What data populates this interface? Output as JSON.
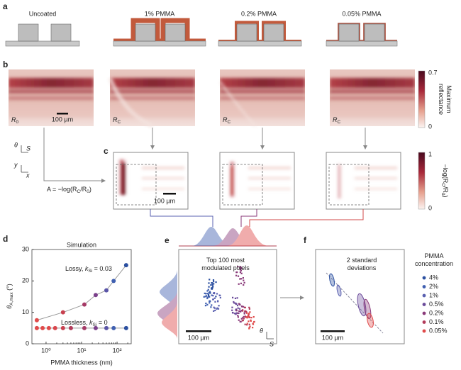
{
  "panel_labels": [
    "a",
    "b",
    "c",
    "d",
    "e",
    "f"
  ],
  "a": {
    "labels": [
      "Uncoated",
      "1% PMMA",
      "0.2% PMMA",
      "0.05% PMMA"
    ]
  },
  "b": {
    "image_labels": [
      [
        "R",
        "0"
      ],
      [
        "R",
        "C"
      ],
      [
        "R",
        "C"
      ],
      [
        "R",
        "C"
      ]
    ],
    "scale_bar": "100 µm",
    "colorbar": {
      "ticks": [
        0.7,
        0
      ],
      "label_lines": [
        "Maximum",
        "reflectance"
      ]
    },
    "axes": {
      "theta": "θ",
      "s": "S",
      "y": "y",
      "x": "x"
    },
    "formula": [
      "A = −log(R",
      "C",
      "/R",
      "0",
      ")"
    ]
  },
  "c": {
    "scale_bar": "100 µm",
    "colorbar": {
      "ticks": [
        1,
        0
      ],
      "label": [
        "−log(R",
        "C",
        "/R",
        "0",
        ")"
      ]
    }
  },
  "chart_data": {
    "type": "scatter",
    "title": "Simulation",
    "xlabel": "PMMA thickness (nm)",
    "ylabel": [
      "θ",
      "A,max",
      " (°)"
    ],
    "xlog": true,
    "xlim": [
      0.4,
      250
    ],
    "ylim": [
      0,
      30
    ],
    "xticks": [
      {
        "value": 1,
        "label": "10⁰"
      },
      {
        "value": 10,
        "label": "10¹"
      },
      {
        "value": 100,
        "label": "10²"
      }
    ],
    "yticks": [
      0,
      10,
      20,
      30
    ],
    "line_color": "#9a9a9a",
    "series": [
      {
        "name": [
          "Lossy, ",
          "k",
          "Si",
          " = 0.03"
        ],
        "x": [
          0.55,
          3,
          12,
          25,
          50,
          80,
          180
        ],
        "values": [
          7.5,
          10,
          12.5,
          15.5,
          17,
          20,
          25
        ],
        "colors": [
          "#e04a4a",
          "#c8404f",
          "#a53a66",
          "#7a3f8a",
          "#5a55a8",
          "#3f5fb0",
          "#2b4fa0"
        ]
      },
      {
        "name": [
          "Lossless, ",
          "k",
          "Si",
          " = 0"
        ],
        "x": [
          0.55,
          0.8,
          1.2,
          1.8,
          3,
          5,
          12,
          25,
          50,
          80,
          180
        ],
        "values": [
          5,
          5,
          5,
          5,
          5,
          5,
          5,
          5,
          5,
          5,
          5
        ],
        "colors": [
          "#e04a4a",
          "#e04a4a",
          "#e04a4a",
          "#d8464c",
          "#c8404f",
          "#b23a5a",
          "#a53a66",
          "#7a3f8a",
          "#5a55a8",
          "#3f5fb0",
          "#2b4fa0"
        ]
      }
    ]
  },
  "e": {
    "title_lines": [
      "Top 100 most",
      "modulated pixels"
    ],
    "scale_bar": "100 µm",
    "theta": "θ",
    "s": "S"
  },
  "f": {
    "title_lines": [
      "2 standard",
      "deviations"
    ],
    "scale_bar": "100 µm"
  },
  "legend": {
    "title_lines": [
      "PMMA",
      "concentration"
    ],
    "items": [
      {
        "name": "4%",
        "color": "#2b4fa0"
      },
      {
        "name": "2%",
        "color": "#3f5fb0"
      },
      {
        "name": "1%",
        "color": "#5a60b0"
      },
      {
        "name": "0.5%",
        "color": "#6a4a9a"
      },
      {
        "name": "0.2%",
        "color": "#8a3a7a"
      },
      {
        "name": "0.1%",
        "color": "#b23a5a"
      },
      {
        "name": "0.05%",
        "color": "#e04a4a"
      }
    ]
  }
}
